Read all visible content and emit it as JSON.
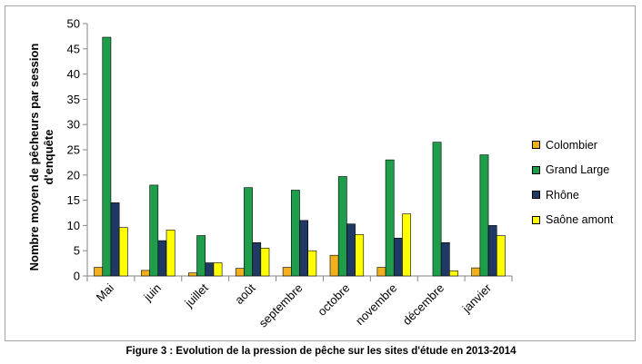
{
  "chart_data": {
    "type": "bar",
    "title": "",
    "ylabel": "Nombre moyen de pêcheurs par session d'enquête",
    "ylabel_lines": [
      "Nombre moyen de pêcheurs par session",
      "d'enquête"
    ],
    "xlabel": "",
    "ylim": [
      0,
      50
    ],
    "yticks": [
      "0",
      "5",
      "10",
      "15",
      "20",
      "25",
      "30",
      "35",
      "40",
      "45",
      "50"
    ],
    "grid": false,
    "legend_position": "right",
    "categories": [
      "Mai",
      "juin",
      "juillet",
      "août",
      "septembre",
      "octobre",
      "novembre",
      "décembre",
      "janvier"
    ],
    "series": [
      {
        "name": "Colombier",
        "color": "#f2b01e",
        "values": [
          1.7,
          1.1,
          0.6,
          1.5,
          1.7,
          4.1,
          1.7,
          0,
          1.6
        ]
      },
      {
        "name": "Grand Large",
        "color": "#1e9e4a",
        "values": [
          47.3,
          18.0,
          8.0,
          17.5,
          17.0,
          19.7,
          23.0,
          26.5,
          24.0
        ]
      },
      {
        "name": "Rhône",
        "color": "#1f3864",
        "values": [
          14.5,
          7.0,
          2.6,
          6.6,
          11.0,
          10.3,
          7.5,
          6.6,
          10.0
        ]
      },
      {
        "name": "Saône amont",
        "color": "#ffff00",
        "values": [
          9.6,
          9.1,
          2.6,
          5.5,
          5.0,
          8.2,
          12.3,
          1.0,
          8.0
        ]
      }
    ]
  },
  "caption": "Figure 3 : Evolution de la pression de pêche sur les sites d'étude en 2013-2014"
}
